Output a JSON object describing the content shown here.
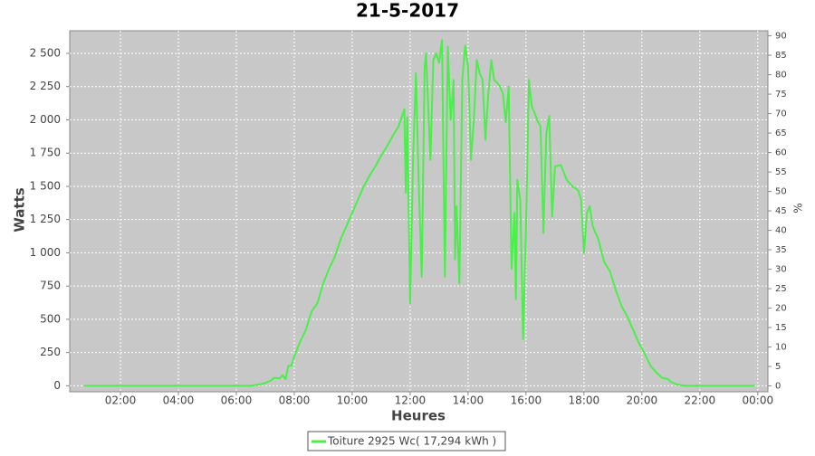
{
  "chart_data": {
    "type": "line",
    "title": "21-5-2017",
    "x_label": "Heures",
    "y_label": "Watts",
    "y2_label": "%",
    "xlim": [
      0.25,
      24.35
    ],
    "xticks": [
      {
        "value": 2,
        "label": "02:00"
      },
      {
        "value": 4,
        "label": "04:00"
      },
      {
        "value": 6,
        "label": "06:00"
      },
      {
        "value": 8,
        "label": "08:00"
      },
      {
        "value": 10,
        "label": "10:00"
      },
      {
        "value": 12,
        "label": "12:00"
      },
      {
        "value": 14,
        "label": "14:00"
      },
      {
        "value": 16,
        "label": "16:00"
      },
      {
        "value": 18,
        "label": "18:00"
      },
      {
        "value": 20,
        "label": "20:00"
      },
      {
        "value": 22,
        "label": "22:00"
      },
      {
        "value": 24,
        "label": "00:00"
      }
    ],
    "ylim": [
      -45,
      2670
    ],
    "yticks": [
      0,
      250,
      500,
      750,
      {
        "value": 1000,
        "label": "1 000"
      },
      {
        "value": 1250,
        "label": "1 250"
      },
      {
        "value": 1500,
        "label": "1 500"
      },
      {
        "value": 1750,
        "label": "1 750"
      },
      {
        "value": 2000,
        "label": "2 000"
      },
      {
        "value": 2250,
        "label": "2 250"
      },
      {
        "value": 2500,
        "label": "2 500"
      }
    ],
    "y2lim": [
      -1.5,
      91.3
    ],
    "y2ticks": [
      0,
      5,
      10,
      15,
      20,
      25,
      30,
      35,
      40,
      45,
      50,
      55,
      60,
      65,
      70,
      75,
      80,
      85,
      90
    ],
    "grid": true,
    "legend": "bottom",
    "x": [
      0.75,
      6.5,
      6.8,
      7.0,
      7.2,
      7.3,
      7.5,
      7.6,
      7.7,
      7.8,
      7.9,
      8.0,
      8.2,
      8.4,
      8.6,
      8.8,
      9.0,
      9.2,
      9.4,
      9.6,
      9.8,
      10.0,
      10.2,
      10.4,
      10.6,
      10.8,
      11.0,
      11.2,
      11.4,
      11.6,
      11.8,
      11.85,
      11.9,
      12.0,
      12.1,
      12.2,
      12.3,
      12.4,
      12.5,
      12.55,
      12.7,
      12.8,
      12.9,
      13.0,
      13.1,
      13.2,
      13.3,
      13.4,
      13.5,
      13.55,
      13.6,
      13.7,
      13.8,
      13.9,
      14.0,
      14.1,
      14.2,
      14.3,
      14.4,
      14.5,
      14.6,
      14.7,
      14.8,
      14.9,
      15.0,
      15.1,
      15.2,
      15.3,
      15.4,
      15.5,
      15.6,
      15.65,
      15.7,
      15.8,
      15.9,
      16.0,
      16.1,
      16.2,
      16.3,
      16.4,
      16.5,
      16.6,
      16.7,
      16.8,
      16.9,
      17.0,
      17.2,
      17.4,
      17.6,
      17.8,
      17.9,
      18.0,
      18.1,
      18.2,
      18.3,
      18.5,
      18.7,
      18.9,
      19.1,
      19.3,
      19.5,
      19.7,
      19.9,
      20.1,
      20.3,
      20.5,
      20.7,
      20.9,
      21.0,
      21.2,
      21.5,
      23.9
    ],
    "series": [
      {
        "name": "Toiture 2925 Wc( 17,294 kWh )",
        "color": "#4cee4c",
        "values": [
          0,
          0,
          10,
          20,
          40,
          60,
          55,
          80,
          50,
          150,
          150,
          220,
          330,
          420,
          560,
          620,
          770,
          880,
          970,
          1100,
          1200,
          1300,
          1400,
          1500,
          1580,
          1650,
          1730,
          1800,
          1880,
          1950,
          2080,
          1450,
          2020,
          620,
          1700,
          2350,
          1500,
          820,
          2400,
          2500,
          1700,
          2450,
          2500,
          2430,
          2600,
          820,
          2550,
          2000,
          2300,
          950,
          1350,
          770,
          2300,
          2560,
          2400,
          1700,
          2000,
          2450,
          2350,
          2300,
          1850,
          2200,
          2450,
          2300,
          2280,
          2250,
          2200,
          1980,
          2250,
          880,
          1300,
          650,
          1550,
          1400,
          350,
          1200,
          2300,
          2100,
          2050,
          1990,
          1950,
          1150,
          1900,
          2030,
          1270,
          1650,
          1660,
          1550,
          1500,
          1470,
          1400,
          1000,
          1300,
          1350,
          1200,
          1100,
          930,
          860,
          720,
          600,
          520,
          420,
          320,
          240,
          150,
          100,
          60,
          50,
          30,
          10,
          0,
          0
        ]
      }
    ]
  }
}
